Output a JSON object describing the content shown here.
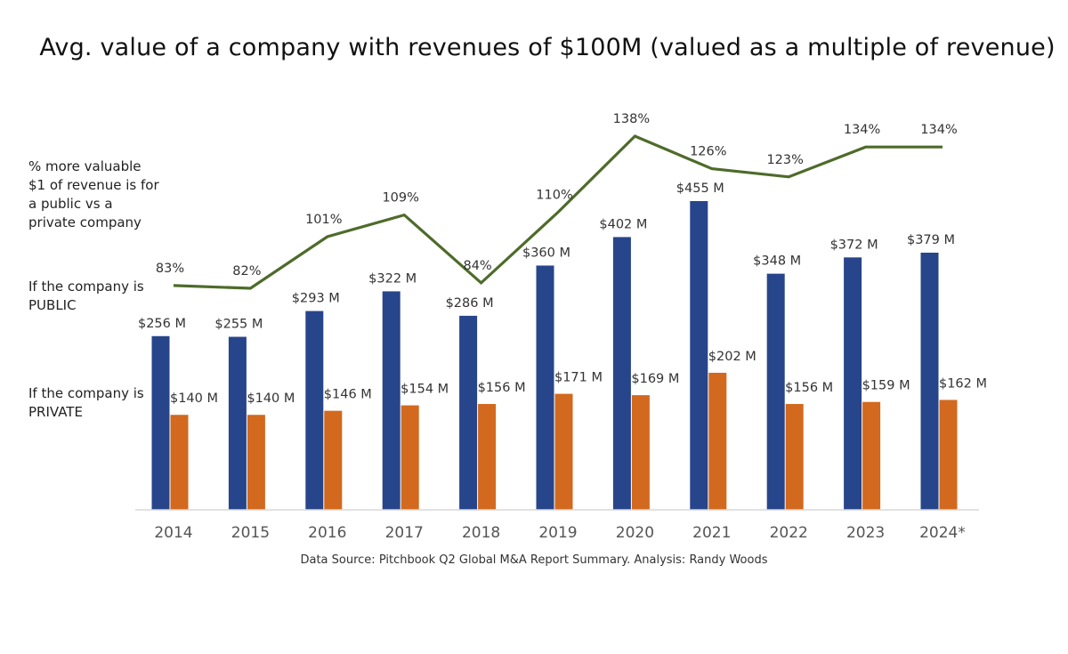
{
  "title": "Avg. value of a company with revenues of $100M (valued as a multiple of revenue)",
  "side_labels": {
    "line": "% more valuable $1 of revenue is for a public vs a private company",
    "public": "If the company is PUBLIC",
    "private": "If the company is PRIVATE"
  },
  "source": "Data Source: Pitchbook Q2 Global M&A Report Summary.  Analysis: Randy Woods",
  "colors": {
    "public": "#27458a",
    "private": "#d2691e",
    "line": "#4e6b2a",
    "axis": "#d9d9d9"
  },
  "chart_data": {
    "type": "bar",
    "categories": [
      "2014",
      "2015",
      "2016",
      "2017",
      "2018",
      "2019",
      "2020",
      "2021",
      "2022",
      "2023",
      "2024*"
    ],
    "series": [
      {
        "key": "public",
        "values": [
          256,
          255,
          293,
          322,
          286,
          360,
          402,
          455,
          348,
          372,
          379
        ],
        "labels": [
          "$256 M",
          "$255 M",
          "$293 M",
          "$322 M",
          "$286 M",
          "$360 M",
          "$402 M",
          "$455 M",
          "$348 M",
          "$372 M",
          "$379 M"
        ]
      },
      {
        "key": "private",
        "values": [
          140,
          140,
          146,
          154,
          156,
          171,
          169,
          202,
          156,
          159,
          162
        ],
        "labels": [
          "$140 M",
          "$140 M",
          "$146 M",
          "$154 M",
          "$156 M",
          "$171 M",
          "$169 M",
          "$202 M",
          "$156 M",
          "$159 M",
          "$162 M"
        ]
      }
    ],
    "line": {
      "type": "line",
      "values": [
        83,
        82,
        101,
        109,
        84,
        110,
        138,
        126,
        123,
        134,
        134
      ],
      "labels": [
        "83%",
        "82%",
        "101%",
        "109%",
        "84%",
        "110%",
        "138%",
        "126%",
        "123%",
        "134%",
        "134%"
      ]
    },
    "unit": "$M",
    "ylim": [
      0,
      455
    ],
    "grid": false
  }
}
